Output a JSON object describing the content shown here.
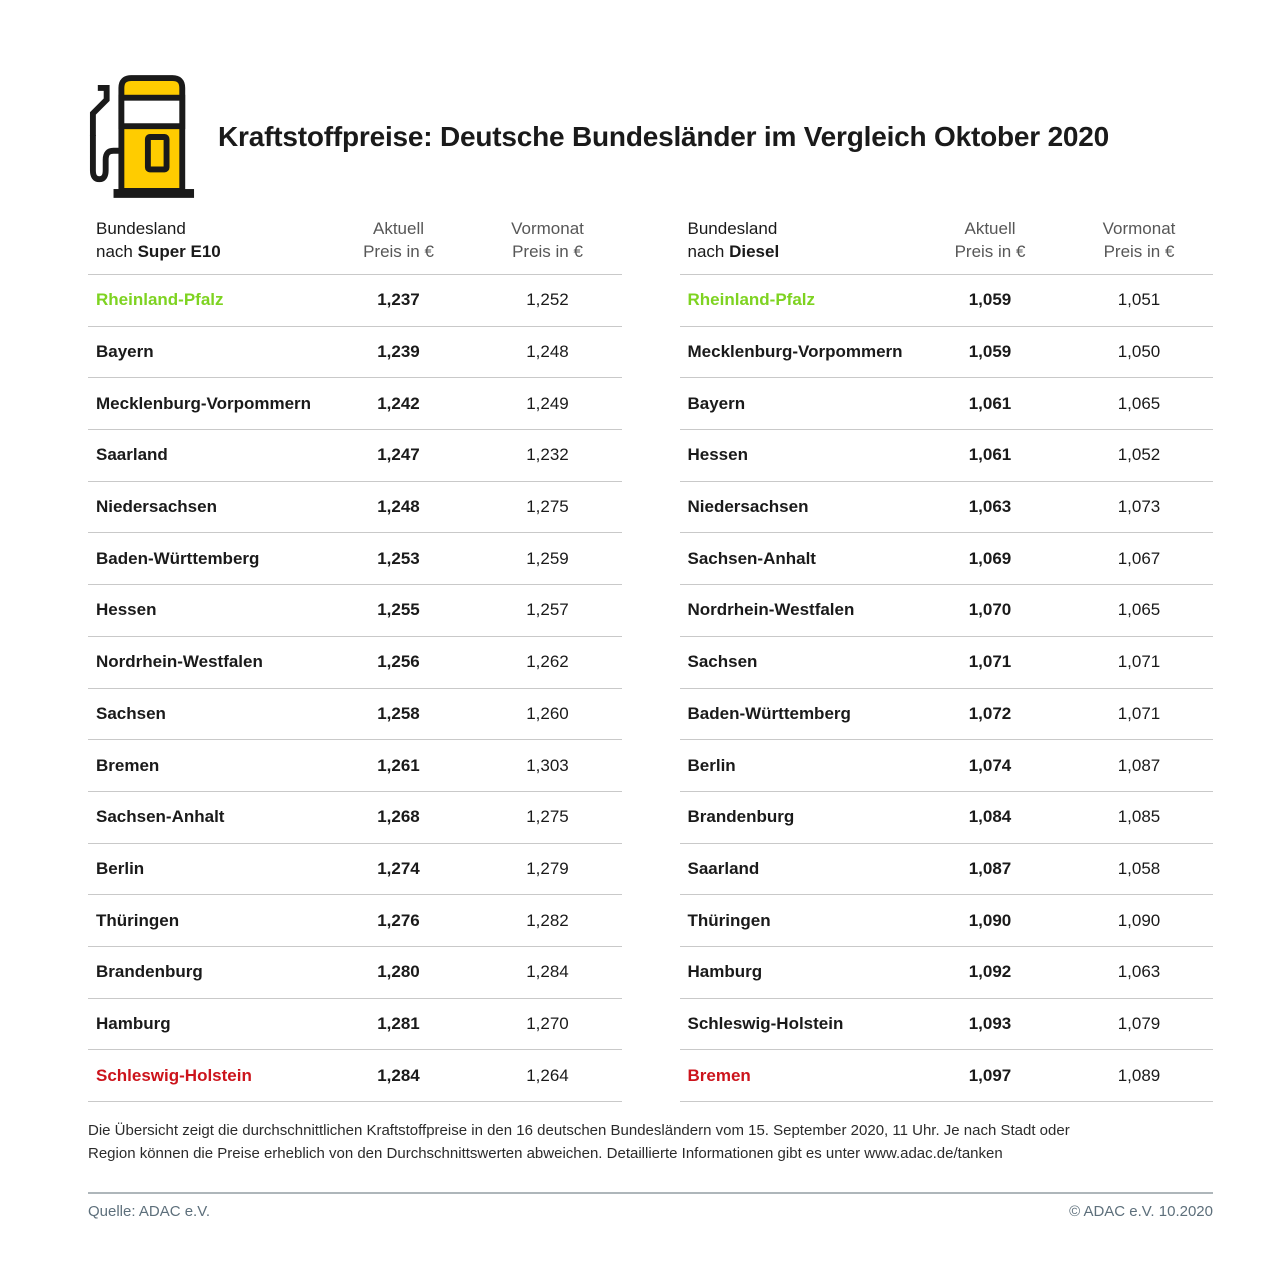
{
  "header": {
    "title": "Kraftstoffpreise: Deutsche Bundesländer im Vergleich Oktober 2020",
    "icon": "fuel-pump-icon"
  },
  "colors": {
    "cheapest_green": "#7ed321",
    "expensive_red": "#cc141c",
    "adac_yellow": "#ffcc00",
    "divider_gray": "#c9c9c9",
    "footer_gray": "#5d6f7b"
  },
  "tables": [
    {
      "col1_line1": "Bundesland",
      "col1_line2_prefix": "nach ",
      "col1_line2_fuel": "Super E10",
      "col2_line1": "Aktuell",
      "col2_line2": "Preis in €",
      "col3_line1": "Vormonat",
      "col3_line2": "Preis in €"
    },
    {
      "col1_line1": "Bundesland",
      "col1_line2_prefix": "nach ",
      "col1_line2_fuel": "Diesel",
      "col2_line1": "Aktuell",
      "col2_line2": "Preis in €",
      "col3_line1": "Vormonat",
      "col3_line2": "Preis in €"
    }
  ],
  "chart_data": [
    {
      "type": "table",
      "title": "Bundesland nach Super E10",
      "columns": [
        "Bundesland",
        "Aktuell Preis in €",
        "Vormonat Preis in €"
      ],
      "rows": [
        {
          "bundesland": "Rheinland-Pfalz",
          "aktuell": "1,237",
          "vormonat": "1,252",
          "highlight": "cheapest"
        },
        {
          "bundesland": "Bayern",
          "aktuell": "1,239",
          "vormonat": "1,248",
          "highlight": ""
        },
        {
          "bundesland": "Mecklenburg-Vorpommern",
          "aktuell": "1,242",
          "vormonat": "1,249",
          "highlight": ""
        },
        {
          "bundesland": "Saarland",
          "aktuell": "1,247",
          "vormonat": "1,232",
          "highlight": ""
        },
        {
          "bundesland": "Niedersachsen",
          "aktuell": "1,248",
          "vormonat": "1,275",
          "highlight": ""
        },
        {
          "bundesland": "Baden-Württemberg",
          "aktuell": "1,253",
          "vormonat": "1,259",
          "highlight": ""
        },
        {
          "bundesland": "Hessen",
          "aktuell": "1,255",
          "vormonat": "1,257",
          "highlight": ""
        },
        {
          "bundesland": "Nordrhein-Westfalen",
          "aktuell": "1,256",
          "vormonat": "1,262",
          "highlight": ""
        },
        {
          "bundesland": "Sachsen",
          "aktuell": "1,258",
          "vormonat": "1,260",
          "highlight": ""
        },
        {
          "bundesland": "Bremen",
          "aktuell": "1,261",
          "vormonat": "1,303",
          "highlight": ""
        },
        {
          "bundesland": "Sachsen-Anhalt",
          "aktuell": "1,268",
          "vormonat": "1,275",
          "highlight": ""
        },
        {
          "bundesland": "Berlin",
          "aktuell": "1,274",
          "vormonat": "1,279",
          "highlight": ""
        },
        {
          "bundesland": "Thüringen",
          "aktuell": "1,276",
          "vormonat": "1,282",
          "highlight": ""
        },
        {
          "bundesland": "Brandenburg",
          "aktuell": "1,280",
          "vormonat": "1,284",
          "highlight": ""
        },
        {
          "bundesland": "Hamburg",
          "aktuell": "1,281",
          "vormonat": "1,270",
          "highlight": ""
        },
        {
          "bundesland": "Schleswig-Holstein",
          "aktuell": "1,284",
          "vormonat": "1,264",
          "highlight": "most_expensive"
        }
      ]
    },
    {
      "type": "table",
      "title": "Bundesland nach Diesel",
      "columns": [
        "Bundesland",
        "Aktuell Preis in €",
        "Vormonat Preis in €"
      ],
      "rows": [
        {
          "bundesland": "Rheinland-Pfalz",
          "aktuell": "1,059",
          "vormonat": "1,051",
          "highlight": "cheapest"
        },
        {
          "bundesland": "Mecklenburg-Vorpommern",
          "aktuell": "1,059",
          "vormonat": "1,050",
          "highlight": ""
        },
        {
          "bundesland": "Bayern",
          "aktuell": "1,061",
          "vormonat": "1,065",
          "highlight": ""
        },
        {
          "bundesland": "Hessen",
          "aktuell": "1,061",
          "vormonat": "1,052",
          "highlight": ""
        },
        {
          "bundesland": "Niedersachsen",
          "aktuell": "1,063",
          "vormonat": "1,073",
          "highlight": ""
        },
        {
          "bundesland": "Sachsen-Anhalt",
          "aktuell": "1,069",
          "vormonat": "1,067",
          "highlight": ""
        },
        {
          "bundesland": "Nordrhein-Westfalen",
          "aktuell": "1,070",
          "vormonat": "1,065",
          "highlight": ""
        },
        {
          "bundesland": "Sachsen",
          "aktuell": "1,071",
          "vormonat": "1,071",
          "highlight": ""
        },
        {
          "bundesland": "Baden-Württemberg",
          "aktuell": "1,072",
          "vormonat": "1,071",
          "highlight": ""
        },
        {
          "bundesland": "Berlin",
          "aktuell": "1,074",
          "vormonat": "1,087",
          "highlight": ""
        },
        {
          "bundesland": "Brandenburg",
          "aktuell": "1,084",
          "vormonat": "1,085",
          "highlight": ""
        },
        {
          "bundesland": "Saarland",
          "aktuell": "1,087",
          "vormonat": "1,058",
          "highlight": ""
        },
        {
          "bundesland": "Thüringen",
          "aktuell": "1,090",
          "vormonat": "1,090",
          "highlight": ""
        },
        {
          "bundesland": "Hamburg",
          "aktuell": "1,092",
          "vormonat": "1,063",
          "highlight": ""
        },
        {
          "bundesland": "Schleswig-Holstein",
          "aktuell": "1,093",
          "vormonat": "1,079",
          "highlight": ""
        },
        {
          "bundesland": "Bremen",
          "aktuell": "1,097",
          "vormonat": "1,089",
          "highlight": "most_expensive"
        }
      ]
    }
  ],
  "footnote": "Die Übersicht zeigt die durchschnittlichen Kraftstoffpreise in den 16 deutschen Bundesländern vom 15. September 2020, 11 Uhr.  Je nach Stadt oder Region können die Preise erheblich von den Durchschnittswerten abweichen. Detaillierte Informationen gibt es unter www.adac.de/tanken",
  "footer": {
    "source": "Quelle: ADAC e.V.",
    "copyright": "© ADAC e.V. 10.2020"
  }
}
